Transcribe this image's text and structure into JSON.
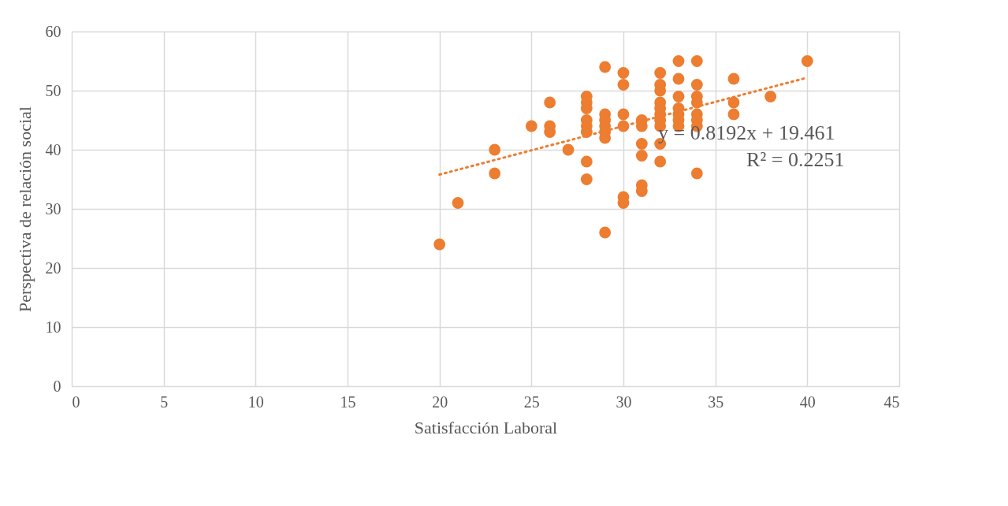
{
  "chart_data": {
    "type": "scatter",
    "xlabel": "Satisfacción Laboral",
    "ylabel": "Perspectiva de relación social",
    "xlim": [
      0,
      45
    ],
    "xticks": [
      0,
      5,
      10,
      15,
      20,
      25,
      30,
      35,
      40,
      45
    ],
    "ylim": [
      0,
      60
    ],
    "yticks": [
      0,
      10,
      20,
      30,
      40,
      50,
      60
    ],
    "grid": true,
    "annotations": [
      "y = 0.8192x + 19.461",
      "R² = 0.2251"
    ],
    "series": [
      {
        "color": "#ed7d31",
        "marker": "circle",
        "x": [
          20,
          21,
          23,
          23,
          25,
          26,
          26,
          26,
          27,
          28,
          28,
          28,
          28,
          28,
          28,
          28,
          28,
          29,
          29,
          29,
          29,
          29,
          29,
          29,
          30,
          30,
          30,
          30,
          30,
          30,
          31,
          31,
          31,
          31,
          31,
          31,
          32,
          32,
          32,
          32,
          32,
          32,
          32,
          32,
          32,
          32,
          33,
          33,
          33,
          33,
          33,
          33,
          33,
          34,
          34,
          34,
          34,
          34,
          34,
          34,
          34,
          36,
          36,
          36,
          38,
          40
        ],
        "values": [
          24,
          31,
          40,
          36,
          44,
          48,
          44,
          43,
          40,
          49,
          48,
          47,
          45,
          44,
          43,
          38,
          35,
          54,
          46,
          45,
          44,
          43,
          42,
          26,
          53,
          51,
          46,
          44,
          32,
          31,
          45,
          44,
          41,
          39,
          34,
          33,
          53,
          51,
          50,
          48,
          47,
          46,
          45,
          44,
          41,
          38,
          55,
          52,
          49,
          47,
          46,
          45,
          44,
          55,
          51,
          49,
          48,
          46,
          45,
          44,
          36,
          52,
          48,
          46,
          49,
          55
        ]
      },
      {
        "color": "#ed7d31",
        "type": "line",
        "line_style": "dotted",
        "x": [
          20,
          40
        ],
        "values": [
          35.8,
          52.2
        ]
      }
    ]
  }
}
